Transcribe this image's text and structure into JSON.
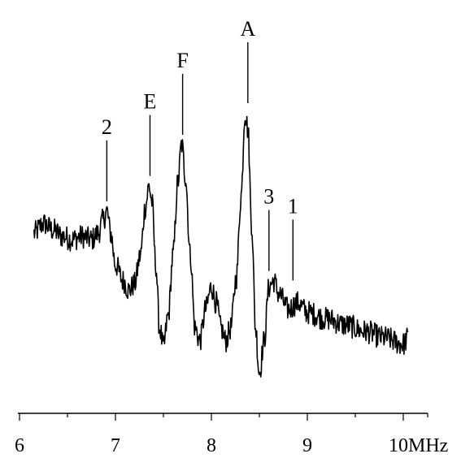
{
  "chart_data": {
    "type": "line",
    "title": "",
    "xlabel": "",
    "ylabel": "",
    "x_unit": "MHz",
    "xlim": [
      6.0,
      10.3
    ],
    "ylim": [
      0,
      1
    ],
    "x_ticks": [
      6,
      7,
      8,
      9,
      10
    ],
    "x_tick_labels": [
      "6",
      "7",
      "8",
      "9",
      "10MHz"
    ],
    "grid": false,
    "legend": "none",
    "line_color": "#000000",
    "series": [
      {
        "x": [
          6.15,
          6.25,
          6.35,
          6.45,
          6.55,
          6.65,
          6.75,
          6.82,
          6.87,
          6.91,
          6.95,
          7.0,
          7.08,
          7.14,
          7.2,
          7.26,
          7.31,
          7.35,
          7.38,
          7.42,
          7.46,
          7.5,
          7.55,
          7.6,
          7.65,
          7.69,
          7.73,
          7.78,
          7.83,
          7.88,
          7.94,
          8.0,
          8.05,
          8.1,
          8.15,
          8.2,
          8.26,
          8.31,
          8.35,
          8.38,
          8.42,
          8.46,
          8.5,
          8.55,
          8.6,
          8.65,
          8.7,
          8.8,
          8.9,
          9.0,
          9.2,
          9.4,
          9.6,
          9.8,
          10.0,
          10.05
        ],
        "y": [
          0.52,
          0.55,
          0.53,
          0.51,
          0.5,
          0.51,
          0.5,
          0.52,
          0.56,
          0.59,
          0.52,
          0.42,
          0.37,
          0.34,
          0.36,
          0.45,
          0.6,
          0.67,
          0.62,
          0.42,
          0.22,
          0.16,
          0.26,
          0.45,
          0.68,
          0.8,
          0.7,
          0.45,
          0.22,
          0.18,
          0.28,
          0.35,
          0.3,
          0.22,
          0.18,
          0.22,
          0.38,
          0.64,
          0.9,
          0.85,
          0.55,
          0.22,
          0.08,
          0.18,
          0.35,
          0.37,
          0.33,
          0.28,
          0.3,
          0.27,
          0.25,
          0.23,
          0.21,
          0.19,
          0.17,
          0.19
        ]
      }
    ],
    "annotations": [
      {
        "label": "2",
        "x": 6.91,
        "y": 0.59
      },
      {
        "label": "E",
        "x": 7.36,
        "y": 0.67
      },
      {
        "label": "F",
        "x": 7.7,
        "y": 0.8
      },
      {
        "label": "A",
        "x": 8.38,
        "y": 0.9
      },
      {
        "label": "3",
        "x": 8.6,
        "y": 0.37
      },
      {
        "label": "1",
        "x": 8.85,
        "y": 0.34
      }
    ]
  }
}
